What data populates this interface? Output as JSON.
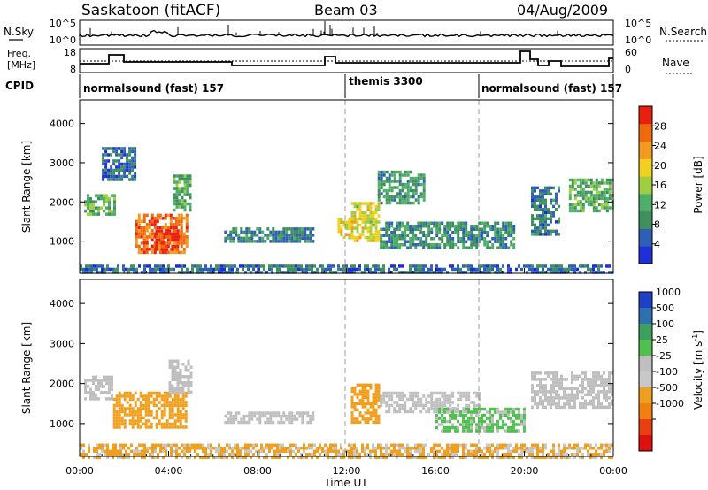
{
  "header": {
    "station": "Saskatoon (fitACF)",
    "beam": "Beam 03",
    "date": "04/Aug/2009"
  },
  "noise_panel": {
    "left_label": "N.Sky",
    "right_label": "N.Search",
    "left_ticks": [
      "10^5",
      "10^0"
    ],
    "right_ticks": [
      "10^5",
      "10^0"
    ]
  },
  "freq_panel": {
    "left_label_1": "Freq.",
    "left_label_2": "[MHz]",
    "right_label": "Nave",
    "left_ticks": [
      "18",
      "8"
    ],
    "right_ticks": [
      "60",
      "0"
    ]
  },
  "cpid": {
    "label": "CPID",
    "segments": [
      {
        "text": "normalsound (fast) 157",
        "start_hour": 0
      },
      {
        "text": "themis 3300",
        "start_hour": 12
      },
      {
        "text": "normalsound (fast) 157",
        "start_hour": 18
      }
    ]
  },
  "colors": {
    "power": [
      "#1f2fd8",
      "#2f60b8",
      "#3f8f5f",
      "#4fae6a",
      "#9fcf3f",
      "#f0d020",
      "#f59a20",
      "#f06a10",
      "#e82010"
    ],
    "velocity": [
      "#2040c8",
      "#3070b0",
      "#3f9f5f",
      "#50c050",
      "#bfbfbf",
      "#c8c8c8",
      "#f0a020",
      "#f08010",
      "#e84010",
      "#e01010"
    ],
    "ground_scatter": "#bfbfbf"
  },
  "chart_data": [
    {
      "type": "heatmap",
      "name": "Power",
      "ylabel": "Slant Range [km]",
      "xlabel": "",
      "x_range_hours": [
        0,
        24
      ],
      "ylim": [
        180,
        4600
      ],
      "yticks": [
        "1000",
        "2000",
        "3000",
        "4000"
      ],
      "colorbar": {
        "label": "Power [dB]",
        "ticks": [
          "4",
          "8",
          "12",
          "16",
          "20",
          "24",
          "28"
        ]
      },
      "regions": [
        {
          "t0": 0.2,
          "t1": 1.6,
          "r0": 1650,
          "r1": 2200,
          "value": 13
        },
        {
          "t0": 1.0,
          "t1": 2.5,
          "r0": 2600,
          "r1": 3400,
          "value": 6
        },
        {
          "t0": 2.5,
          "t1": 4.8,
          "r0": 700,
          "r1": 1700,
          "value": 26
        },
        {
          "t0": 3.4,
          "t1": 4.4,
          "r0": 800,
          "r1": 1300,
          "value": 29
        },
        {
          "t0": 4.2,
          "t1": 5.0,
          "r0": 1800,
          "r1": 2700,
          "value": 12
        },
        {
          "t0": 6.5,
          "t1": 10.5,
          "r0": 1000,
          "r1": 1350,
          "value": 8
        },
        {
          "t0": 11.6,
          "t1": 12.2,
          "r0": 1100,
          "r1": 1600,
          "value": 20
        },
        {
          "t0": 12.2,
          "t1": 13.4,
          "r0": 1000,
          "r1": 2000,
          "value": 18
        },
        {
          "t0": 13.4,
          "t1": 15.5,
          "r0": 2000,
          "r1": 2800,
          "value": 10
        },
        {
          "t0": 13.5,
          "t1": 19.5,
          "r0": 800,
          "r1": 1500,
          "value": 9
        },
        {
          "t0": 20.3,
          "t1": 21.5,
          "r0": 1200,
          "r1": 2400,
          "value": 7
        },
        {
          "t0": 22.0,
          "t1": 24.0,
          "r0": 1800,
          "r1": 2600,
          "value": 12
        },
        {
          "t0": 0.0,
          "t1": 24.0,
          "r0": 180,
          "r1": 400,
          "value": 6
        }
      ]
    },
    {
      "type": "heatmap",
      "name": "Velocity",
      "ylabel": "Slant Range [km]",
      "xlabel": "Time UT",
      "x_range_hours": [
        0,
        24
      ],
      "xticks": [
        "00:00",
        "04:00",
        "08:00",
        "12:00",
        "16:00",
        "20:00",
        "00:00"
      ],
      "ylim": [
        180,
        4600
      ],
      "yticks": [
        "1000",
        "2000",
        "3000",
        "4000"
      ],
      "colorbar": {
        "label": "Velocity [m s",
        "superscript": "-1",
        "close": "]",
        "ticks": [
          "1000",
          "500",
          "100",
          "25",
          "-25",
          "-100",
          "-500",
          "-1000"
        ]
      },
      "regions": [
        {
          "t0": 0.2,
          "t1": 1.5,
          "r0": 1600,
          "r1": 2200,
          "value": 0,
          "ground": true
        },
        {
          "t0": 1.5,
          "t1": 4.8,
          "r0": 900,
          "r1": 1800,
          "value": -300
        },
        {
          "t0": 4.0,
          "t1": 5.0,
          "r0": 1800,
          "r1": 2600,
          "value": 0,
          "ground": true
        },
        {
          "t0": 6.5,
          "t1": 10.5,
          "r0": 1000,
          "r1": 1300,
          "value": 0,
          "ground": true
        },
        {
          "t0": 12.2,
          "t1": 13.5,
          "r0": 1000,
          "r1": 2000,
          "value": -300
        },
        {
          "t0": 13.5,
          "t1": 18.0,
          "r0": 1300,
          "r1": 1800,
          "value": 0,
          "ground": true
        },
        {
          "t0": 16.0,
          "t1": 20.0,
          "r0": 800,
          "r1": 1400,
          "value": 30
        },
        {
          "t0": 20.3,
          "t1": 24.0,
          "r0": 1400,
          "r1": 2300,
          "value": 0,
          "ground": true
        },
        {
          "t0": 0.0,
          "t1": 24.0,
          "r0": 180,
          "r1": 500,
          "value": -120
        }
      ]
    }
  ]
}
